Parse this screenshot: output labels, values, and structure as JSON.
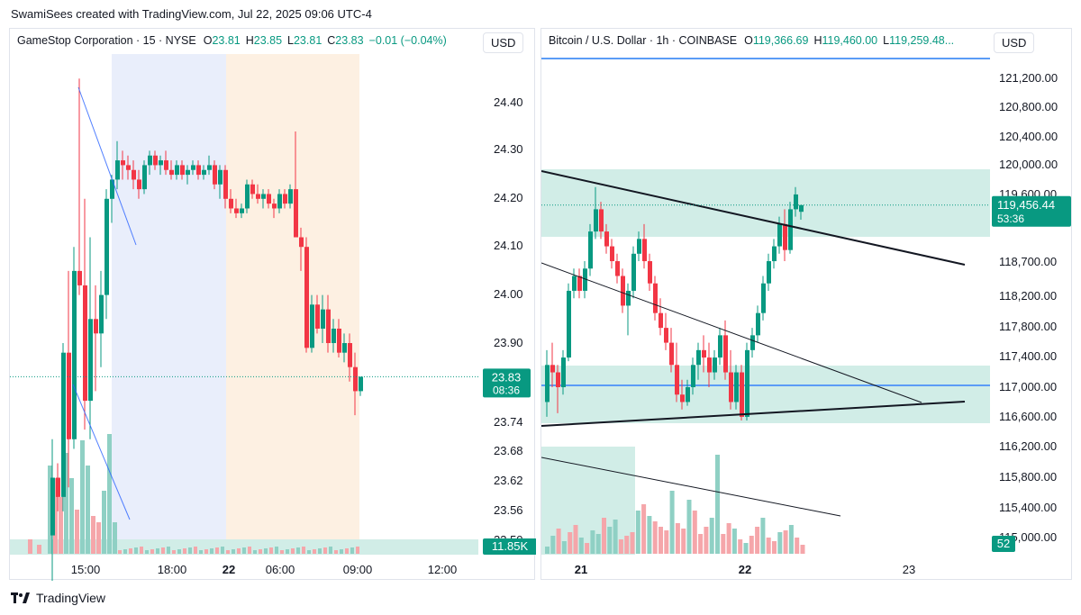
{
  "header": {
    "title": "SwamiSees created with TradingView.com, Jul 22, 2025 09:06 UTC-4"
  },
  "footer": {
    "brand": "TradingView"
  },
  "colors": {
    "up": "#089981",
    "down": "#f23645",
    "upVol": "#8fd0c4",
    "downVol": "#f5a6aa",
    "zone": "#d1ede7"
  },
  "left_panel": {
    "symbol": "GameStop Corporation · 15 · NYSE",
    "o_label": "O",
    "o_value": "23.81",
    "h_label": "H",
    "h_value": "23.85",
    "l_label": "L",
    "l_value": "23.81",
    "c_label": "C",
    "c_value": "23.83",
    "change": "−0.01 (−0.04%)",
    "currency": "USD",
    "price_tag": "23.83",
    "countdown": "08:36",
    "volume_tag": "11.85K"
  },
  "right_panel": {
    "symbol": "Bitcoin / U.S. Dollar · 1h · COINBASE",
    "o_label": "O",
    "o_value": "119,366.69",
    "h_label": "H",
    "h_value": "119,460.00",
    "l_label": "L",
    "l_value": "119,259.48...",
    "currency": "USD",
    "price_tag": "119,456.44",
    "countdown": "53:36",
    "volume_tag": "52"
  },
  "chart_data": [
    {
      "type": "candlestick",
      "title": "GameStop Corporation · 15 · NYSE",
      "y_ticks": [
        "24.40",
        "24.30",
        "24.20",
        "24.10",
        "24.00",
        "23.90",
        "23.74",
        "23.68",
        "23.62",
        "23.56",
        "23.50"
      ],
      "x_ticks": [
        "15:00",
        "18:00",
        "22",
        "06:00",
        "09:00",
        "12:00"
      ],
      "sessions": [
        {
          "name": "pre-market",
          "color": "#e9eefb"
        },
        {
          "name": "post/extended",
          "color": "#fdf0e2"
        }
      ],
      "last_price": 23.83
    },
    {
      "type": "candlestick",
      "title": "Bitcoin / U.S. Dollar · 1h · COINBASE",
      "y_ticks": [
        "121,200.00",
        "120,800.00",
        "120,400.00",
        "120,000.00",
        "119,600.00",
        "118,700.00",
        "118,200.00",
        "117,800.00",
        "117,400.00",
        "117,000.00",
        "116,600.00",
        "116,200.00",
        "115,800.00",
        "115,400.00",
        "115,000.00"
      ],
      "x_ticks": [
        "21",
        "22",
        "23"
      ],
      "last_price": 119456.44
    }
  ]
}
